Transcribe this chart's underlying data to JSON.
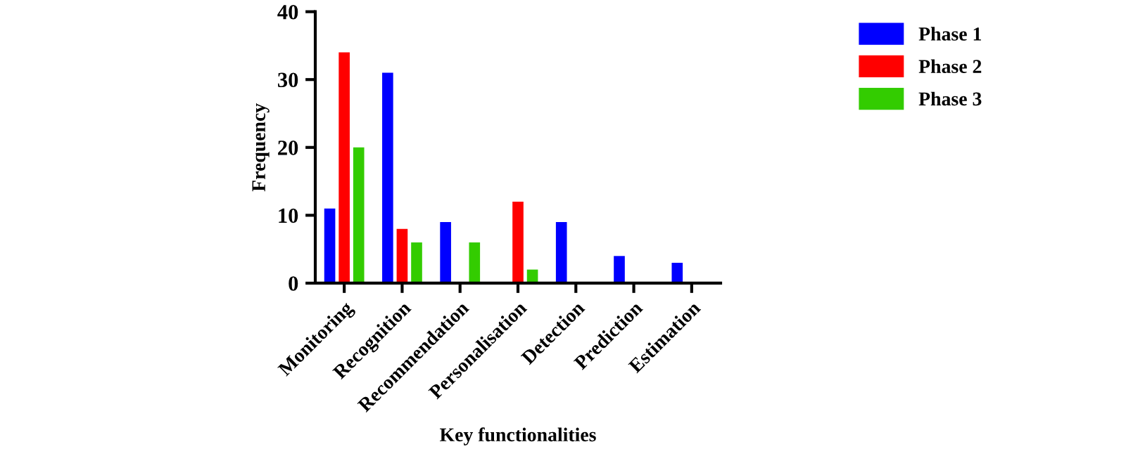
{
  "chart_data": {
    "type": "bar",
    "xlabel": "Key functionalities",
    "ylabel": "Frequency",
    "categories": [
      "Monitoring",
      "Recognition",
      "Recommendation",
      "Personalisation",
      "Detection",
      "Prediction",
      "Estimation"
    ],
    "series": [
      {
        "name": "Phase 1",
        "color": "#0000ff",
        "values": [
          11,
          31,
          9,
          0,
          9,
          4,
          3
        ]
      },
      {
        "name": "Phase 2",
        "color": "#ff0000",
        "values": [
          34,
          8,
          0,
          12,
          0,
          0,
          0
        ]
      },
      {
        "name": "Phase 3",
        "color": "#33cc00",
        "values": [
          20,
          6,
          6,
          2,
          0,
          0,
          0
        ]
      }
    ],
    "ylim": [
      0,
      40
    ],
    "yticks": [
      0,
      10,
      20,
      30,
      40
    ],
    "grid": false,
    "legend": "top right"
  }
}
